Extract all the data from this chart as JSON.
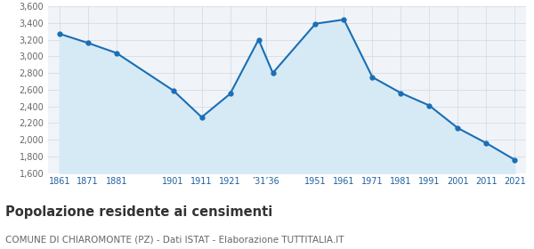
{
  "years": [
    1861,
    1871,
    1881,
    1901,
    1911,
    1921,
    1931,
    1936,
    1951,
    1961,
    1971,
    1981,
    1991,
    2001,
    2011,
    2021
  ],
  "population": [
    3270,
    3160,
    3040,
    2590,
    2270,
    2550,
    3200,
    2800,
    3390,
    3440,
    2750,
    2560,
    2410,
    2140,
    1960,
    1760
  ],
  "ylim": [
    1600,
    3600
  ],
  "yticks": [
    1600,
    1800,
    2000,
    2200,
    2400,
    2600,
    2800,
    3000,
    3200,
    3400,
    3600
  ],
  "line_color": "#1b6eb5",
  "fill_color": "#d6eaf5",
  "marker_color": "#1b6eb5",
  "bg_color": "#f0f4f8",
  "title": "Popolazione residente ai censimenti",
  "subtitle": "COMUNE DI CHIAROMONTE (PZ) - Dati ISTAT - Elaborazione TUTTITALIA.IT",
  "title_fontsize": 10.5,
  "subtitle_fontsize": 7.5,
  "grid_color": "#d0d8e0",
  "tick_color": "#2060a0",
  "ytick_color": "#666666"
}
